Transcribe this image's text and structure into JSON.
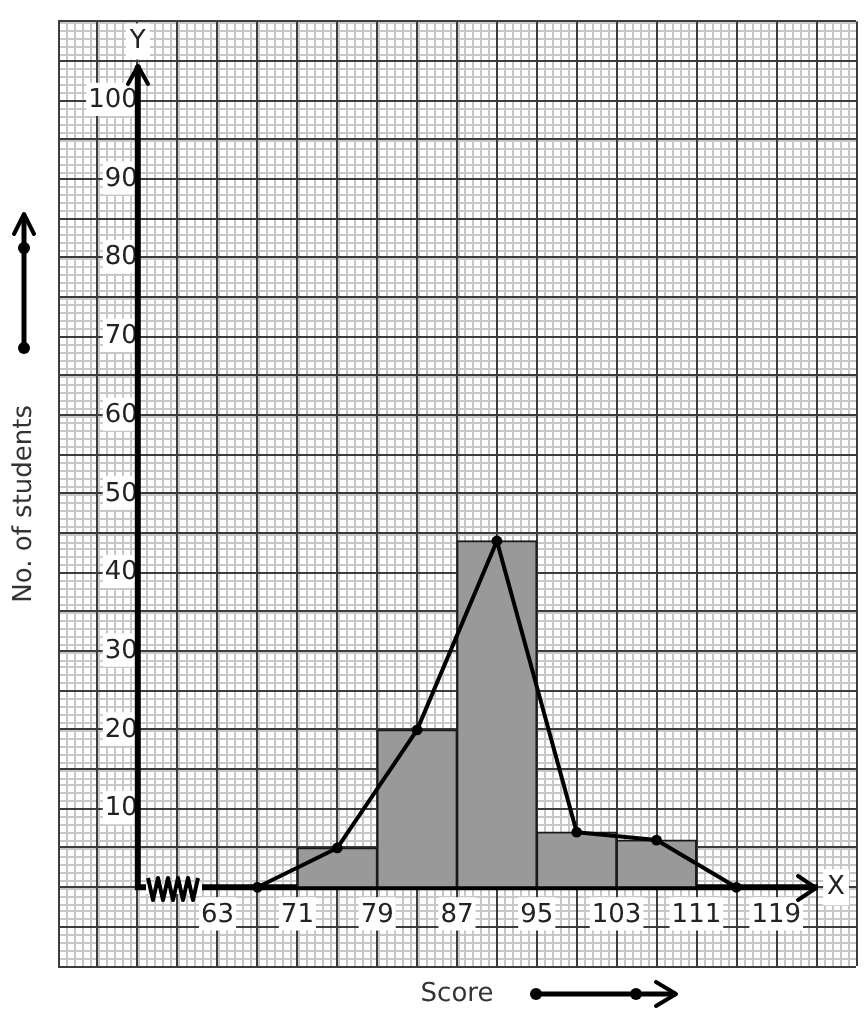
{
  "chart_data": {
    "type": "histogram",
    "xlabel": "Score",
    "ylabel": "No. of students",
    "annotations": [
      "Y",
      "X"
    ],
    "bins": [
      71,
      79,
      87,
      95,
      103,
      111
    ],
    "series": [
      {
        "color": "#999999",
        "values": [
          5,
          20,
          44,
          7,
          6
        ]
      },
      {
        "type": "line",
        "color": "#000000",
        "x": [
          67,
          75,
          83,
          91,
          99,
          107,
          115
        ],
        "values": [
          0,
          5,
          20,
          44,
          7,
          6,
          0
        ]
      }
    ],
    "marker": "circle",
    "grid": true,
    "xlim": [
      47,
      127
    ],
    "xticks": [
      {
        "value": 47,
        "label": null
      },
      {
        "value": 51,
        "label": null
      },
      {
        "value": 55,
        "label": null
      },
      {
        "value": 59,
        "label": null
      },
      63,
      {
        "value": 67,
        "label": null
      },
      71,
      {
        "value": 75,
        "label": null
      },
      79,
      {
        "value": 83,
        "label": null
      },
      87,
      {
        "value": 91,
        "label": null
      },
      95,
      {
        "value": 99,
        "label": null
      },
      103,
      {
        "value": 107,
        "label": null
      },
      111,
      {
        "value": 115,
        "label": null
      },
      119,
      {
        "value": 123,
        "label": null
      },
      {
        "value": 127,
        "label": null
      }
    ],
    "ylim": [
      -10,
      110
    ],
    "yticks": [
      {
        "value": -10,
        "label": null
      },
      {
        "value": -5,
        "label": null
      },
      {
        "value": 0,
        "label": null
      },
      {
        "value": 5,
        "label": null
      },
      10,
      {
        "value": 15,
        "label": null
      },
      20,
      {
        "value": 25,
        "label": null
      },
      30,
      {
        "value": 35,
        "label": null
      },
      40,
      {
        "value": 45,
        "label": null
      },
      50,
      {
        "value": 55,
        "label": null
      },
      60,
      {
        "value": 65,
        "label": null
      },
      70,
      {
        "value": 75,
        "label": null
      },
      80,
      {
        "value": 85,
        "label": null
      },
      90,
      {
        "value": 95,
        "label": null
      },
      100,
      {
        "value": 105,
        "label": null
      },
      {
        "value": 110,
        "label": null
      }
    ]
  }
}
